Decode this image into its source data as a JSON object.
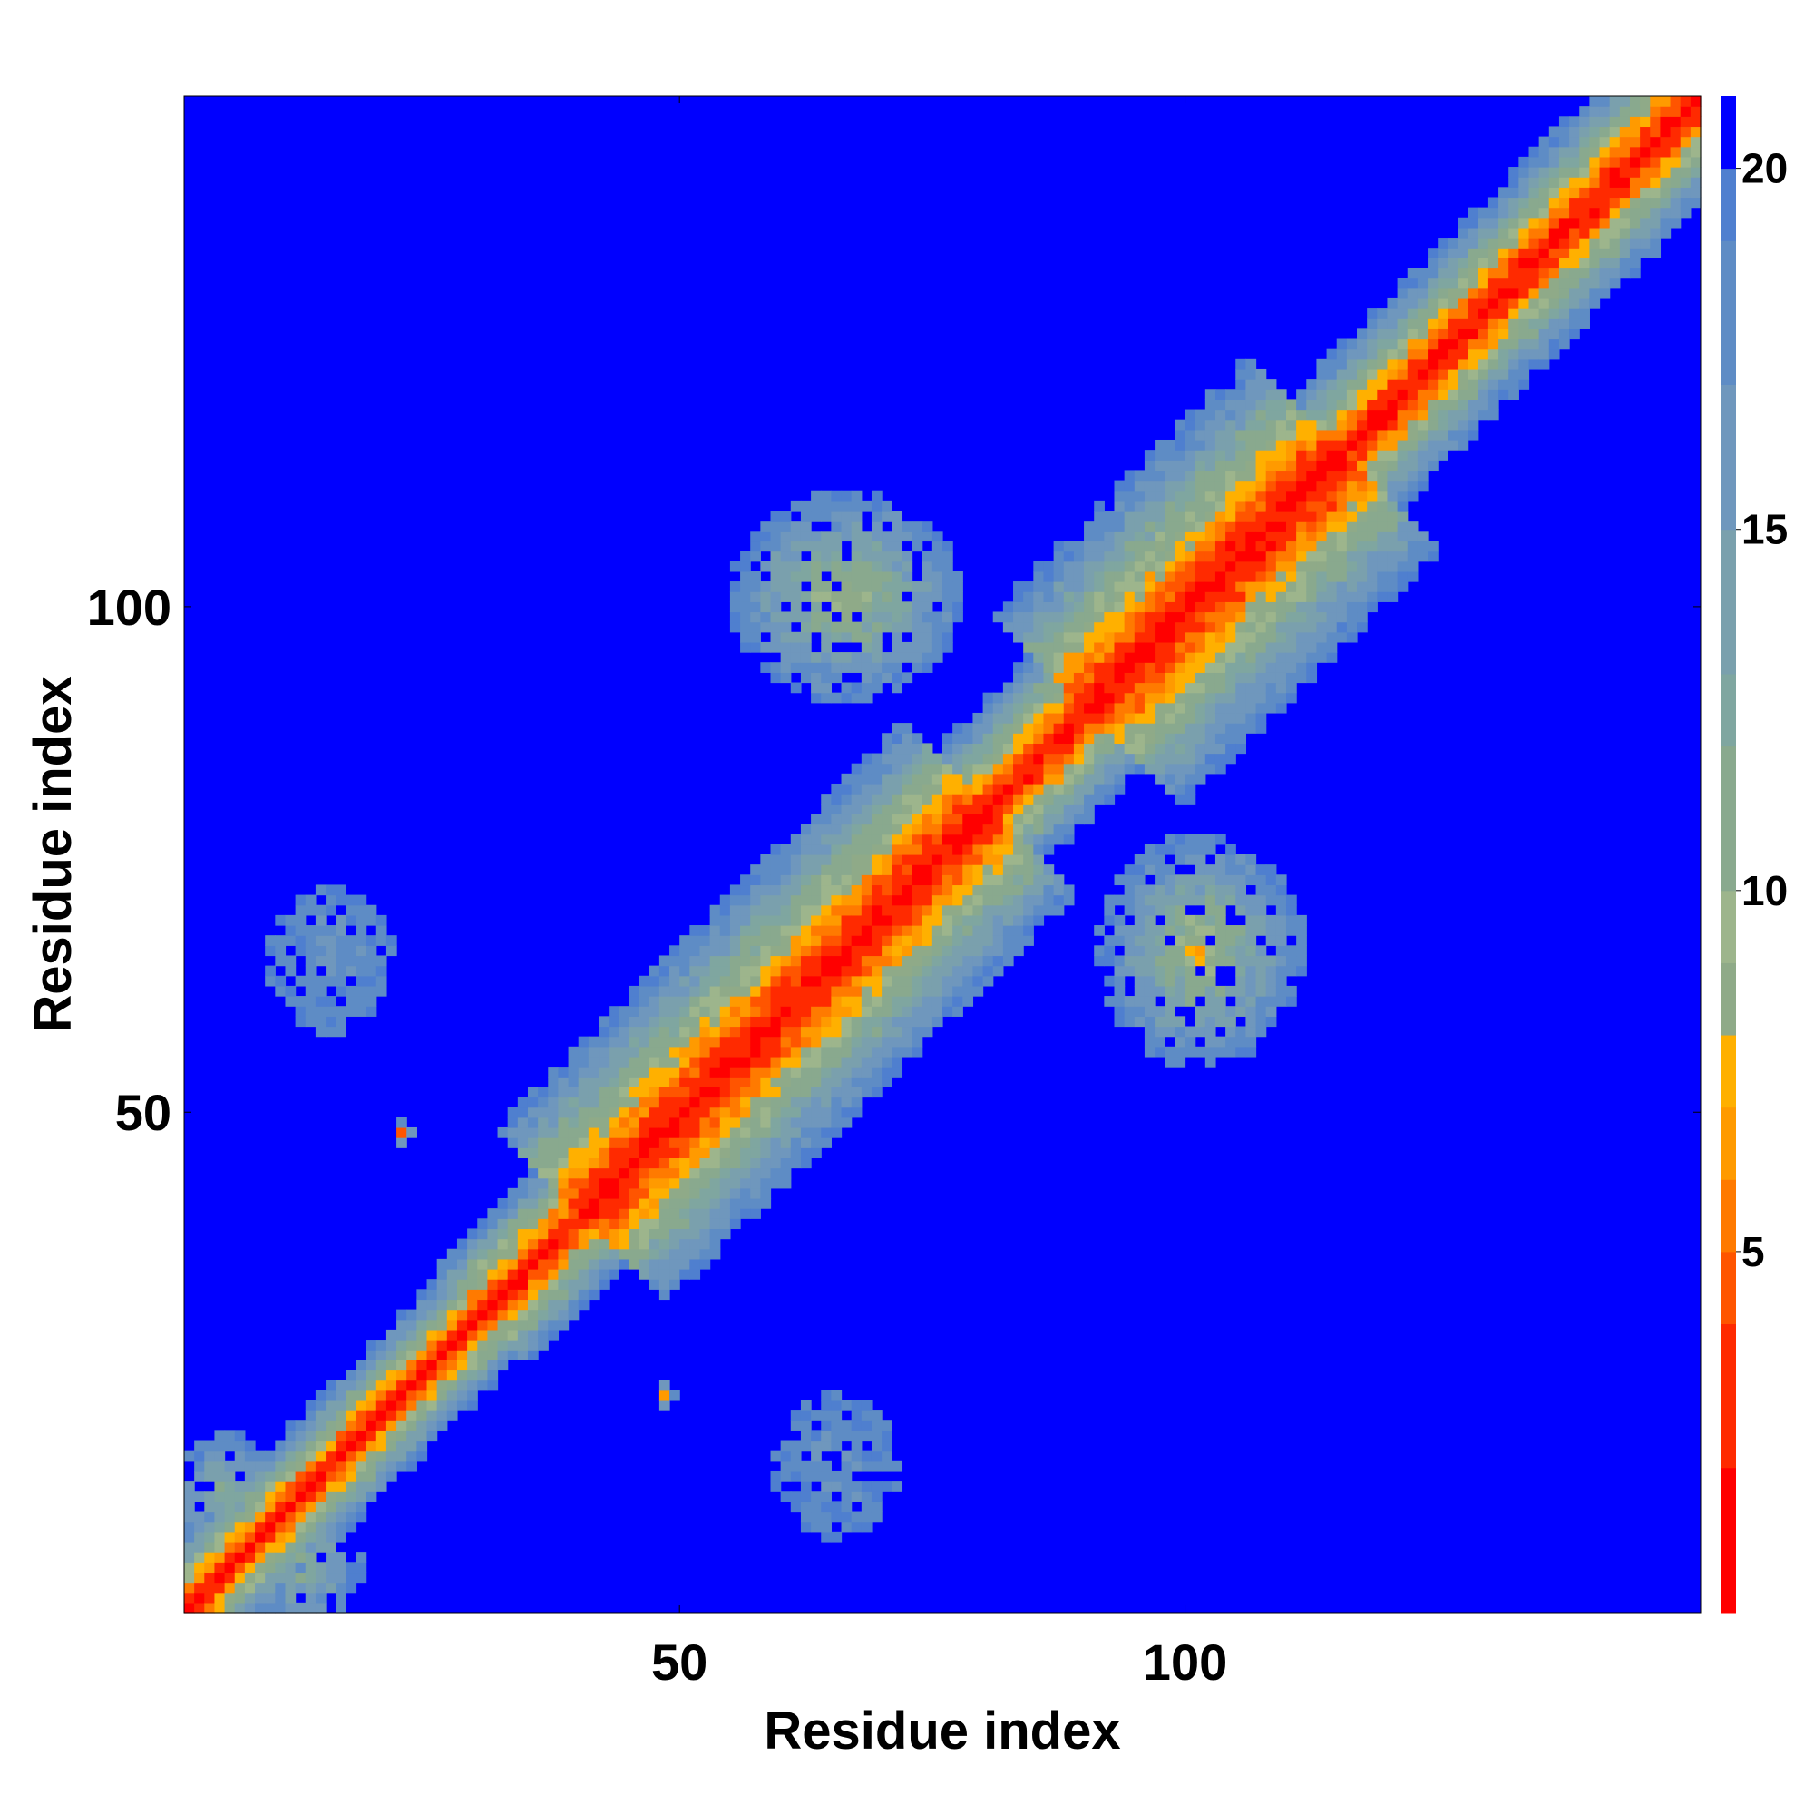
{
  "chart_data": {
    "type": "heatmap",
    "title": "",
    "xlabel": "Residue index",
    "ylabel": "Residue index",
    "xlim": [
      1,
      150
    ],
    "ylim": [
      1,
      150
    ],
    "x_ticks": [
      50,
      100
    ],
    "y_ticks": [
      50,
      100
    ],
    "colorbar": {
      "ticks": [
        5,
        10,
        15,
        20
      ],
      "range": [
        0,
        21
      ],
      "colors": [
        {
          "max": 2,
          "color": "#ff0000"
        },
        {
          "max": 4,
          "color": "#ff2a00"
        },
        {
          "max": 5,
          "color": "#ff5500"
        },
        {
          "max": 6,
          "color": "#ff7a00"
        },
        {
          "max": 7,
          "color": "#ff9a00"
        },
        {
          "max": 8,
          "color": "#ffb000"
        },
        {
          "max": 9,
          "color": "#8faa88"
        },
        {
          "max": 10,
          "color": "#9db58c"
        },
        {
          "max": 12,
          "color": "#89a98e"
        },
        {
          "max": 13,
          "color": "#7fa6a0"
        },
        {
          "max": 15,
          "color": "#7aa0ad"
        },
        {
          "max": 17,
          "color": "#6f97bd"
        },
        {
          "max": 19,
          "color": "#5e8cc5"
        },
        {
          "max": 20,
          "color": "#4f7fcf"
        },
        {
          "max": 21,
          "color": "#0000ff"
        }
      ]
    },
    "description_of_data": "Symmetric residue-residue distance map (Angstrom); red/orange = close contacts along diagonal, blue = distances >= 20",
    "features": {
      "diagonal_bands": [
        {
          "from": 1,
          "to": 30,
          "width": 5
        },
        {
          "from": 30,
          "to": 45,
          "width": 6
        },
        {
          "from": 40,
          "to": 80,
          "width": 11
        },
        {
          "from": 80,
          "to": 95,
          "width": 7
        },
        {
          "from": 90,
          "to": 115,
          "width": 12
        },
        {
          "from": 115,
          "to": 150,
          "width": 7
        }
      ],
      "contact_patches": [
        {
          "x": 66,
          "y": 101,
          "rx": 11,
          "ry": 10,
          "core": 8
        },
        {
          "x": 101,
          "y": 66,
          "rx": 10,
          "ry": 11,
          "core": 8
        },
        {
          "x": 22,
          "y": 48,
          "rx": 1.2,
          "ry": 1.2,
          "core": 6
        },
        {
          "x": 48,
          "y": 22,
          "rx": 1.2,
          "ry": 1.2,
          "core": 6
        },
        {
          "x": 5,
          "y": 12,
          "rx": 6,
          "ry": 6,
          "core": 11
        },
        {
          "x": 12,
          "y": 5,
          "rx": 6,
          "ry": 6,
          "core": 11
        },
        {
          "x": 15,
          "y": 65,
          "rx": 6,
          "ry": 7,
          "core": 17
        },
        {
          "x": 65,
          "y": 15,
          "rx": 6,
          "ry": 7,
          "core": 17
        }
      ]
    }
  }
}
